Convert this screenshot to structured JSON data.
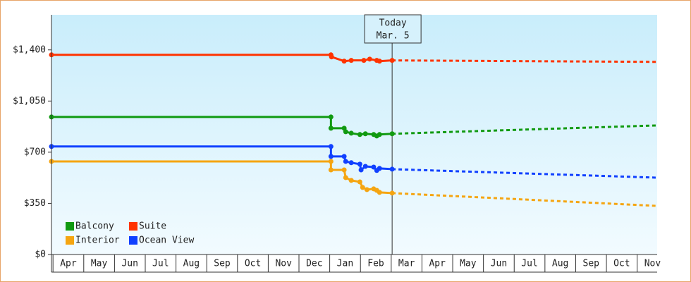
{
  "chart_data": {
    "type": "line",
    "ylim": [
      0,
      1640
    ],
    "yticks": [
      {
        "value": 0,
        "label": "$0"
      },
      {
        "value": 350,
        "label": "$350"
      },
      {
        "value": 700,
        "label": "$700"
      },
      {
        "value": 1050,
        "label": "$1,050"
      },
      {
        "value": 1400,
        "label": "$1,400"
      }
    ],
    "xlim": [
      -0.05,
      19.65
    ],
    "xticks": [
      {
        "value": 0.5,
        "label": "Apr"
      },
      {
        "value": 1.5,
        "label": "May"
      },
      {
        "value": 2.5,
        "label": "Jun"
      },
      {
        "value": 3.5,
        "label": "Jul"
      },
      {
        "value": 4.5,
        "label": "Aug"
      },
      {
        "value": 5.5,
        "label": "Sep"
      },
      {
        "value": 6.5,
        "label": "Oct"
      },
      {
        "value": 7.5,
        "label": "Nov"
      },
      {
        "value": 8.5,
        "label": "Dec"
      },
      {
        "value": 9.5,
        "label": "Jan"
      },
      {
        "value": 10.5,
        "label": "Feb"
      },
      {
        "value": 11.5,
        "label": "Mar"
      },
      {
        "value": 12.5,
        "label": "Apr"
      },
      {
        "value": 13.5,
        "label": "May"
      },
      {
        "value": 14.5,
        "label": "Jun"
      },
      {
        "value": 15.5,
        "label": "Jul"
      },
      {
        "value": 16.5,
        "label": "Aug"
      },
      {
        "value": 17.5,
        "label": "Sep"
      },
      {
        "value": 18.5,
        "label": "Oct"
      },
      {
        "value": 19.5,
        "label": "Nov"
      }
    ],
    "today_x": 11.03,
    "today_label": "Today",
    "today_date": "Mar. 5",
    "forecast_x": 19.61,
    "series": [
      {
        "name": "Balcony",
        "color": "#119a11",
        "x": [
          -0.05,
          9.04,
          9.04,
          9.47,
          9.52,
          9.7,
          9.98,
          10.16,
          10.43,
          10.53,
          10.62,
          11.03
        ],
        "values": [
          941,
          941,
          864,
          864,
          840,
          830,
          821,
          826,
          821,
          811,
          821,
          826
        ],
        "forecast_value": 883
      },
      {
        "name": "Suite",
        "color": "#ff3300",
        "x": [
          -0.05,
          9.04,
          9.06,
          9.47,
          9.7,
          10.11,
          10.3,
          10.53,
          10.62,
          11.03
        ],
        "values": [
          1366,
          1366,
          1352,
          1323,
          1328,
          1328,
          1337,
          1328,
          1323,
          1328
        ],
        "forecast_value": 1318
      },
      {
        "name": "Interior",
        "color": "#f5a511",
        "x": [
          -0.05,
          9.04,
          9.04,
          9.47,
          9.52,
          9.7,
          9.98,
          10.07,
          10.21,
          10.43,
          10.53,
          10.62,
          11.03
        ],
        "values": [
          637,
          637,
          579,
          579,
          526,
          507,
          497,
          459,
          444,
          449,
          439,
          425,
          420
        ],
        "forecast_value": 333
      },
      {
        "name": "Ocean View",
        "color": "#1040ff",
        "x": [
          -0.05,
          9.04,
          9.04,
          9.47,
          9.52,
          9.7,
          9.98,
          10.02,
          10.16,
          10.43,
          10.53,
          10.62,
          11.03
        ],
        "values": [
          739,
          739,
          671,
          671,
          637,
          628,
          618,
          579,
          603,
          598,
          575,
          589,
          584
        ],
        "forecast_value": 526
      }
    ]
  }
}
